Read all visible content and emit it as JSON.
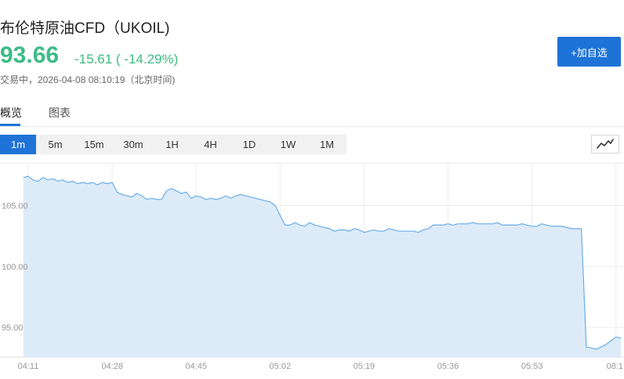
{
  "header": {
    "title": "布伦特原油CFD（UKOIL)",
    "price": "93.66",
    "change": "-15.61 ( -14.29%)",
    "status": "交易中，2026-04-08 08:10:19（北京时间)",
    "favorite_button": "+加自选"
  },
  "tabs": [
    {
      "label": "概览",
      "active": true
    },
    {
      "label": "图表",
      "active": false
    }
  ],
  "periods": [
    {
      "label": "1m",
      "active": true
    },
    {
      "label": "5m",
      "active": false
    },
    {
      "label": "15m",
      "active": false
    },
    {
      "label": "30m",
      "active": false
    },
    {
      "label": "1H",
      "active": false
    },
    {
      "label": "4H",
      "active": false
    },
    {
      "label": "1D",
      "active": false
    },
    {
      "label": "1W",
      "active": false
    },
    {
      "label": "1M",
      "active": false
    }
  ],
  "chart_type_icon": "line-chart-icon",
  "colors": {
    "accent": "#1f73d6",
    "up_down": "#3dbb87",
    "line": "#6aaee6",
    "fill": "#ddebf9"
  },
  "chart_data": {
    "type": "area",
    "ylabels": [
      "105.00",
      "100.00",
      "95.00"
    ],
    "yticks": [
      105,
      100,
      95
    ],
    "xlabels": [
      "04:11",
      "04:28",
      "04:45",
      "05:02",
      "05:19",
      "05:36",
      "05:53",
      "08:1"
    ],
    "xticks": [
      0,
      17,
      34,
      51,
      68,
      85,
      102,
      119
    ],
    "ylim": [
      93.0,
      108.0
    ],
    "xlim": [
      0,
      119
    ],
    "grid": true,
    "x": [
      -1,
      0,
      1,
      2,
      3,
      4,
      5,
      6,
      7,
      8,
      9,
      10,
      11,
      12,
      13,
      14,
      15,
      16,
      17,
      18,
      19,
      20,
      21,
      22,
      23,
      24,
      25,
      26,
      27,
      28,
      29,
      30,
      31,
      32,
      33,
      34,
      35,
      36,
      37,
      38,
      39,
      40,
      41,
      42,
      43,
      44,
      45,
      46,
      47,
      48,
      49,
      50,
      51,
      52,
      53,
      54,
      55,
      56,
      57,
      58,
      59,
      60,
      61,
      62,
      63,
      64,
      65,
      66,
      67,
      68,
      69,
      70,
      71,
      72,
      73,
      74,
      75,
      76,
      77,
      78,
      79,
      80,
      81,
      82,
      83,
      84,
      85,
      86,
      87,
      88,
      89,
      90,
      91,
      92,
      93,
      94,
      95,
      96,
      97,
      98,
      99,
      100,
      101,
      102,
      103,
      104,
      105,
      106,
      107,
      108,
      109,
      110,
      111,
      112,
      113,
      114,
      115,
      116,
      117,
      118,
      119,
      120
    ],
    "values": [
      107.3,
      107.4,
      107.1,
      107.0,
      107.3,
      107.1,
      107.2,
      107.0,
      107.1,
      106.9,
      107.0,
      106.8,
      106.9,
      106.8,
      106.9,
      106.7,
      106.9,
      106.8,
      106.9,
      106.1,
      105.9,
      105.8,
      105.7,
      106.0,
      105.8,
      105.5,
      105.6,
      105.5,
      105.5,
      106.2,
      106.4,
      106.2,
      106.0,
      106.1,
      105.6,
      105.8,
      105.7,
      105.5,
      105.6,
      105.5,
      105.6,
      105.8,
      105.6,
      105.8,
      105.9,
      105.8,
      105.7,
      105.6,
      105.5,
      105.4,
      105.3,
      105.0,
      104.2,
      103.4,
      103.4,
      103.6,
      103.4,
      103.3,
      103.6,
      103.4,
      103.3,
      103.2,
      103.1,
      102.9,
      103.0,
      103.0,
      102.9,
      103.1,
      103.0,
      102.8,
      102.9,
      103.0,
      102.9,
      102.9,
      103.1,
      103.0,
      102.9,
      102.9,
      102.9,
      102.9,
      102.8,
      103.0,
      103.1,
      103.4,
      103.4,
      103.4,
      103.5,
      103.4,
      103.5,
      103.5,
      103.5,
      103.6,
      103.5,
      103.5,
      103.5,
      103.5,
      103.6,
      103.4,
      103.4,
      103.4,
      103.4,
      103.5,
      103.4,
      103.3,
      103.3,
      103.5,
      103.4,
      103.3,
      103.3,
      103.3,
      103.2,
      103.1,
      103.1,
      103.1,
      93.4,
      93.3,
      93.2,
      93.4,
      93.6,
      93.9,
      94.2,
      94.1
    ]
  }
}
